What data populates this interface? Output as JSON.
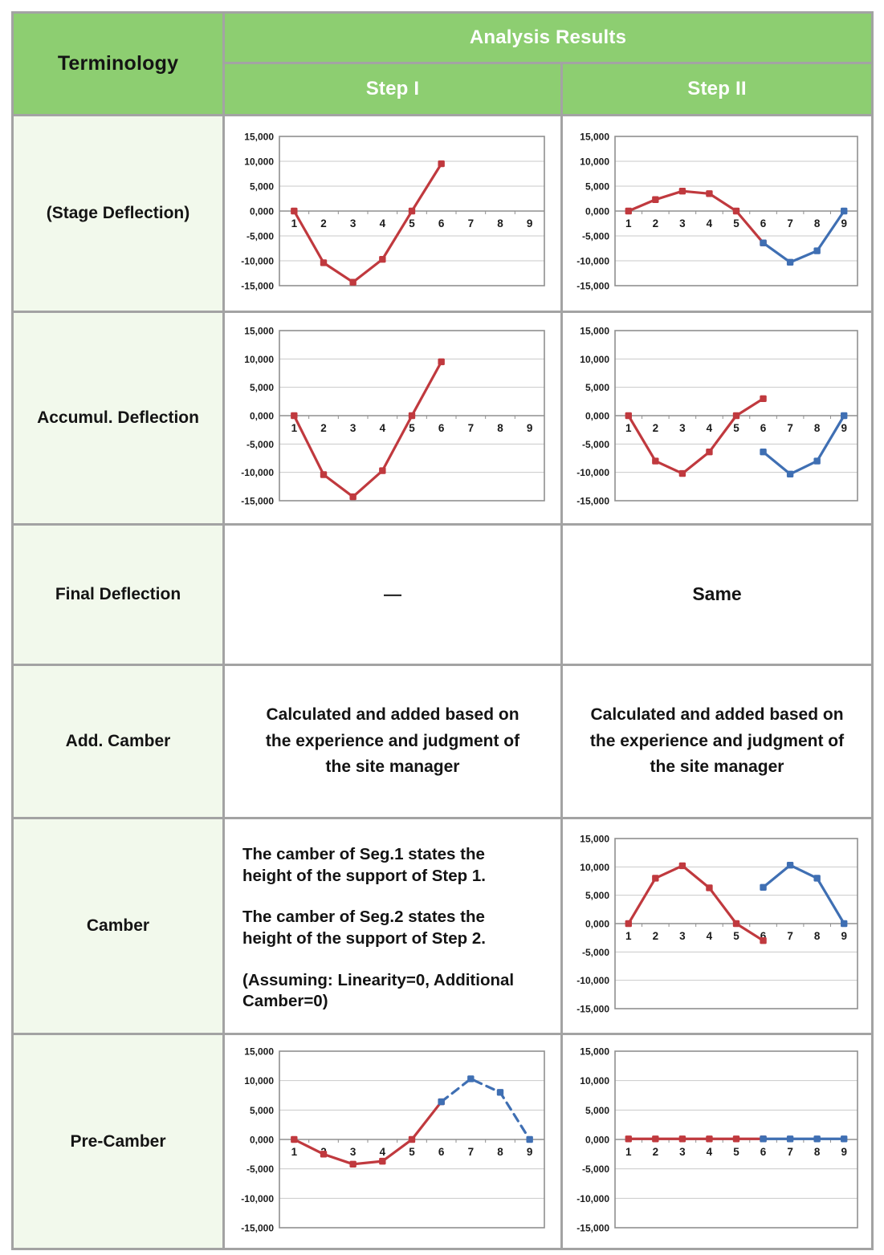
{
  "header": {
    "terminology": "Terminology",
    "analysis_results": "Analysis Results",
    "step1": "Step I",
    "step2": "Step II"
  },
  "colors": {
    "header_green": "#8dce71",
    "label_light_green": "#f2f9ec",
    "table_border_gray": "#a3a3a3",
    "red": "#c0393e",
    "blue": "#3f6fb3",
    "grid_gray": "#c9c9c9",
    "axis_gray": "#8f8f8f"
  },
  "rows": [
    {
      "label": "(Stage Deflection)"
    },
    {
      "label": "Accumul. Deflection"
    },
    {
      "label": "Final Deflection",
      "step1_text": "—",
      "step2_text": "Same"
    },
    {
      "label": "Add. Camber",
      "step1_text": "Calculated and added based on the experience and judgment of the site manager",
      "step2_text": "Calculated and added based on the experience and judgment of the site manager"
    },
    {
      "label": "Camber",
      "step1_paragraphs": [
        "The camber of Seg.1 states the height of the support of Step 1.",
        "The camber of Seg.2 states the height of the support of Step 2.",
        "(Assuming: Linearity=0, Additional Camber=0)"
      ]
    },
    {
      "label": "Pre-Camber"
    }
  ],
  "chart_data": [
    {
      "id": "stage-step1",
      "type": "line",
      "x_tick_labels": [
        "1",
        "2",
        "3",
        "4",
        "5",
        "6",
        "7",
        "8",
        "9"
      ],
      "y_tick_labels": [
        "15,000",
        "10,000",
        "5,000",
        "0,000",
        "-5,000",
        "-10,000",
        "-15,000"
      ],
      "ylim": [
        -15000,
        15000
      ],
      "grid": true,
      "legend": false,
      "series": [
        {
          "color": "red",
          "dash": false,
          "points": [
            [
              1,
              0
            ],
            [
              2,
              -10400
            ],
            [
              3,
              -14300
            ],
            [
              4,
              -9700
            ],
            [
              5,
              0
            ],
            [
              6,
              9500
            ]
          ]
        }
      ]
    },
    {
      "id": "stage-step2",
      "type": "line",
      "x_tick_labels": [
        "1",
        "2",
        "3",
        "4",
        "5",
        "6",
        "7",
        "8",
        "9"
      ],
      "y_tick_labels": [
        "15,000",
        "10,000",
        "5,000",
        "0,000",
        "-5,000",
        "-10,000",
        "-15,000"
      ],
      "ylim": [
        -15000,
        15000
      ],
      "grid": true,
      "legend": false,
      "series": [
        {
          "color": "red",
          "dash": false,
          "points": [
            [
              1,
              0
            ],
            [
              2,
              2300
            ],
            [
              3,
              4000
            ],
            [
              4,
              3500
            ],
            [
              5,
              0
            ],
            [
              6,
              -6400
            ]
          ]
        },
        {
          "color": "blue",
          "dash": false,
          "points": [
            [
              6,
              -6400
            ],
            [
              7,
              -10300
            ],
            [
              8,
              -8000
            ],
            [
              9,
              0
            ]
          ]
        }
      ]
    },
    {
      "id": "accumul-step1",
      "type": "line",
      "x_tick_labels": [
        "1",
        "2",
        "3",
        "4",
        "5",
        "6",
        "7",
        "8",
        "9"
      ],
      "y_tick_labels": [
        "15,000",
        "10,000",
        "5,000",
        "0,000",
        "-5,000",
        "-10,000",
        "-15,000"
      ],
      "ylim": [
        -15000,
        15000
      ],
      "grid": true,
      "legend": false,
      "series": [
        {
          "color": "red",
          "dash": false,
          "points": [
            [
              1,
              0
            ],
            [
              2,
              -10400
            ],
            [
              3,
              -14300
            ],
            [
              4,
              -9700
            ],
            [
              5,
              0
            ],
            [
              6,
              9500
            ]
          ]
        }
      ]
    },
    {
      "id": "accumul-step2",
      "type": "line",
      "x_tick_labels": [
        "1",
        "2",
        "3",
        "4",
        "5",
        "6",
        "7",
        "8",
        "9"
      ],
      "y_tick_labels": [
        "15,000",
        "10,000",
        "5,000",
        "0,000",
        "-5,000",
        "-10,000",
        "-15,000"
      ],
      "ylim": [
        -15000,
        15000
      ],
      "grid": true,
      "legend": false,
      "series": [
        {
          "color": "red",
          "dash": false,
          "points": [
            [
              1,
              0
            ],
            [
              2,
              -8000
            ],
            [
              3,
              -10200
            ],
            [
              4,
              -6400
            ],
            [
              5,
              0
            ],
            [
              6,
              3000
            ]
          ]
        },
        {
          "color": "blue",
          "dash": false,
          "points": [
            [
              6,
              -6400
            ],
            [
              7,
              -10300
            ],
            [
              8,
              -8000
            ],
            [
              9,
              0
            ]
          ]
        }
      ]
    },
    {
      "id": "camber-step2",
      "type": "line",
      "x_tick_labels": [
        "1",
        "2",
        "3",
        "4",
        "5",
        "6",
        "7",
        "8",
        "9"
      ],
      "y_tick_labels": [
        "15,000",
        "10,000",
        "5,000",
        "0,000",
        "-5,000",
        "-10,000",
        "-15,000"
      ],
      "ylim": [
        -15000,
        15000
      ],
      "grid": true,
      "legend": false,
      "series": [
        {
          "color": "red",
          "dash": false,
          "points": [
            [
              1,
              0
            ],
            [
              2,
              8000
            ],
            [
              3,
              10200
            ],
            [
              4,
              6300
            ],
            [
              5,
              0
            ],
            [
              6,
              -3000
            ]
          ]
        },
        {
          "color": "blue",
          "dash": false,
          "points": [
            [
              6,
              6400
            ],
            [
              7,
              10300
            ],
            [
              8,
              8000
            ],
            [
              9,
              0
            ]
          ]
        }
      ]
    },
    {
      "id": "precamber-step1",
      "type": "line",
      "x_tick_labels": [
        "1",
        "2",
        "3",
        "4",
        "5",
        "6",
        "7",
        "8",
        "9"
      ],
      "y_tick_labels": [
        "15,000",
        "10,000",
        "5,000",
        "0,000",
        "-5,000",
        "-10,000",
        "-15,000"
      ],
      "ylim": [
        -15000,
        15000
      ],
      "grid": true,
      "legend": false,
      "series": [
        {
          "color": "red",
          "dash": false,
          "points": [
            [
              1,
              0
            ],
            [
              2,
              -2500
            ],
            [
              3,
              -4200
            ],
            [
              4,
              -3700
            ],
            [
              5,
              0
            ],
            [
              6,
              6400
            ]
          ]
        },
        {
          "color": "blue",
          "dash": true,
          "points": [
            [
              6,
              6400
            ],
            [
              7,
              10300
            ],
            [
              8,
              8000
            ],
            [
              9,
              0
            ]
          ]
        }
      ]
    },
    {
      "id": "precamber-step2",
      "type": "line",
      "x_tick_labels": [
        "1",
        "2",
        "3",
        "4",
        "5",
        "6",
        "7",
        "8",
        "9"
      ],
      "y_tick_labels": [
        "15,000",
        "10,000",
        "5,000",
        "0,000",
        "-5,000",
        "-10,000",
        "-15,000"
      ],
      "ylim": [
        -15000,
        15000
      ],
      "grid": true,
      "legend": false,
      "series": [
        {
          "color": "red",
          "dash": false,
          "points": [
            [
              1,
              100
            ],
            [
              2,
              100
            ],
            [
              3,
              100
            ],
            [
              4,
              100
            ],
            [
              5,
              100
            ],
            [
              6,
              100
            ]
          ]
        },
        {
          "color": "blue",
          "dash": false,
          "points": [
            [
              6,
              100
            ],
            [
              7,
              100
            ],
            [
              8,
              100
            ],
            [
              9,
              100
            ]
          ]
        }
      ]
    }
  ]
}
